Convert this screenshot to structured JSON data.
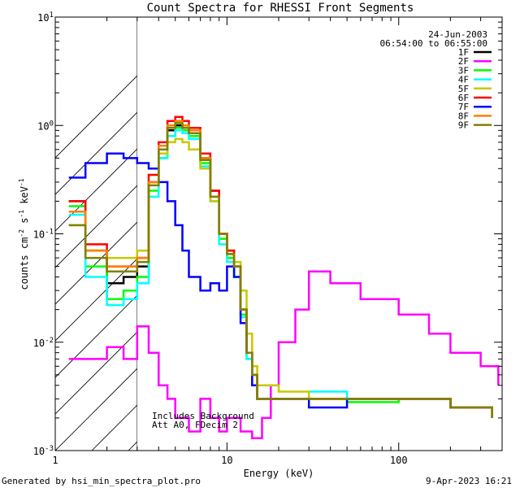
{
  "chart_data": {
    "type": "line",
    "title": "Count Spectra for RHESSI Front Segments",
    "xlabel": "Energy (keV)",
    "ylabel": {
      "base": "counts cm",
      "exp1": "-2",
      "mid": " s",
      "exp2": "-1",
      "tail": " keV",
      "exp3": "-1"
    },
    "xscale": "log",
    "yscale": "log",
    "xlim": [
      1,
      400
    ],
    "ylim": [
      0.001,
      10
    ],
    "x_tick_labels": [
      "1",
      "10",
      "100"
    ],
    "y_tick_labels": [
      {
        "base": "10",
        "exp": "-3"
      },
      {
        "base": "10",
        "exp": "-2"
      },
      {
        "base": "10",
        "exp": "-1"
      },
      {
        "base": "10",
        "exp": "0"
      },
      {
        "base": "10",
        "exp": "1"
      }
    ],
    "excluded_region_below_keV": 3,
    "date": "24-Jun-2003",
    "time_range": "06:54:00 to 06:55:00",
    "annotations": [
      "Includes Background",
      "Att A0, FDecim 2"
    ],
    "footer_left": "Generated by hsi_min_spectra_plot.pro",
    "footer_right": "9-Apr-2023 16:21",
    "series": [
      {
        "name": "1F",
        "color": "#000000",
        "x": [
          1.2,
          1.5,
          2.0,
          2.5,
          3.0,
          3.5,
          4.0,
          4.5,
          5.0,
          5.5,
          6.0,
          7.0,
          8.0,
          9.0,
          10.0,
          11.0,
          12.0,
          13.0,
          14.0,
          15.0,
          20.0,
          30.0,
          50.0,
          100.0,
          200.0,
          350.0
        ],
        "y": [
          0.2,
          0.07,
          0.035,
          0.04,
          0.05,
          0.3,
          0.6,
          0.9,
          1.0,
          0.95,
          0.85,
          0.5,
          0.25,
          0.1,
          0.07,
          0.05,
          0.02,
          0.008,
          0.005,
          0.003,
          0.003,
          0.003,
          0.003,
          0.003,
          0.0025,
          0.002
        ]
      },
      {
        "name": "2F",
        "color": "#ff00ff",
        "x": [
          1.2,
          1.5,
          2.0,
          2.5,
          3.0,
          3.5,
          4.0,
          4.5,
          5.0,
          6.0,
          7.0,
          8.0,
          9.0,
          10.0,
          12.0,
          14.0,
          16.0,
          18.0,
          20.0,
          25.0,
          30.0,
          40.0,
          60.0,
          100.0,
          150.0,
          200.0,
          300.0,
          380.0
        ],
        "y": [
          0.007,
          0.007,
          0.009,
          0.007,
          0.014,
          0.008,
          0.004,
          0.003,
          0.002,
          0.0015,
          0.003,
          0.002,
          0.0015,
          0.002,
          0.0015,
          0.0013,
          0.002,
          0.004,
          0.01,
          0.02,
          0.045,
          0.035,
          0.025,
          0.018,
          0.012,
          0.008,
          0.006,
          0.004
        ]
      },
      {
        "name": "3F",
        "color": "#00ff00",
        "x": [
          1.2,
          1.5,
          2.0,
          2.5,
          3.0,
          3.5,
          4.0,
          4.5,
          5.0,
          5.5,
          6.0,
          7.0,
          8.0,
          9.0,
          10.0,
          11.0,
          12.0,
          13.0,
          14.0,
          15.0,
          20.0,
          30.0,
          50.0,
          100.0,
          200.0,
          350.0
        ],
        "y": [
          0.18,
          0.05,
          0.025,
          0.03,
          0.04,
          0.25,
          0.5,
          0.8,
          0.95,
          0.9,
          0.8,
          0.45,
          0.2,
          0.09,
          0.06,
          0.04,
          0.018,
          0.007,
          0.004,
          0.003,
          0.003,
          0.003,
          0.0028,
          0.003,
          0.0025,
          0.002
        ]
      },
      {
        "name": "4F",
        "color": "#00ffff",
        "x": [
          1.2,
          1.5,
          2.0,
          2.5,
          3.0,
          3.5,
          4.0,
          4.5,
          5.0,
          5.5,
          6.0,
          7.0,
          8.0,
          9.0,
          10.0,
          11.0,
          12.0,
          13.0,
          14.0,
          15.0,
          20.0,
          30.0,
          50.0,
          100.0,
          200.0,
          350.0
        ],
        "y": [
          0.15,
          0.04,
          0.022,
          0.025,
          0.035,
          0.22,
          0.5,
          0.8,
          0.9,
          0.85,
          0.75,
          0.42,
          0.2,
          0.08,
          0.055,
          0.04,
          0.017,
          0.007,
          0.004,
          0.003,
          0.003,
          0.0035,
          0.003,
          0.003,
          0.0025,
          0.002
        ]
      },
      {
        "name": "5F",
        "color": "#c8c800",
        "x": [
          1.2,
          1.5,
          2.0,
          2.5,
          3.0,
          3.5,
          4.0,
          4.5,
          5.0,
          5.5,
          6.0,
          7.0,
          8.0,
          9.0,
          10.0,
          11.0,
          12.0,
          13.0,
          14.0,
          15.0,
          20.0,
          30.0,
          50.0,
          100.0,
          200.0,
          350.0
        ],
        "y": [
          0.12,
          0.07,
          0.06,
          0.06,
          0.07,
          0.3,
          0.55,
          0.7,
          0.75,
          0.7,
          0.6,
          0.4,
          0.2,
          0.1,
          0.07,
          0.055,
          0.03,
          0.012,
          0.006,
          0.004,
          0.0035,
          0.003,
          0.003,
          0.003,
          0.0025,
          0.002
        ]
      },
      {
        "name": "6F",
        "color": "#ff0000",
        "x": [
          1.2,
          1.5,
          2.0,
          2.5,
          3.0,
          3.5,
          4.0,
          4.5,
          5.0,
          5.5,
          6.0,
          7.0,
          8.0,
          9.0,
          10.0,
          11.0,
          12.0,
          13.0,
          14.0,
          15.0,
          20.0,
          30.0,
          50.0,
          100.0,
          200.0,
          350.0
        ],
        "y": [
          0.2,
          0.08,
          0.05,
          0.05,
          0.06,
          0.35,
          0.7,
          1.1,
          1.2,
          1.1,
          0.95,
          0.55,
          0.25,
          0.1,
          0.07,
          0.05,
          0.02,
          0.008,
          0.005,
          0.003,
          0.003,
          0.003,
          0.003,
          0.003,
          0.0025,
          0.002
        ]
      },
      {
        "name": "7F",
        "color": "#0000ff",
        "x": [
          1.2,
          1.5,
          2.0,
          2.5,
          3.0,
          3.5,
          4.0,
          4.5,
          5.0,
          5.5,
          6.0,
          7.0,
          8.0,
          9.0,
          10.0,
          11.0,
          12.0,
          13.0,
          14.0,
          15.0,
          20.0,
          30.0,
          50.0,
          100.0,
          200.0,
          350.0
        ],
        "y": [
          0.33,
          0.45,
          0.55,
          0.5,
          0.45,
          0.4,
          0.3,
          0.2,
          0.12,
          0.07,
          0.04,
          0.03,
          0.035,
          0.03,
          0.05,
          0.04,
          0.015,
          0.008,
          0.004,
          0.003,
          0.003,
          0.0025,
          0.003,
          0.003,
          0.0025,
          0.002
        ]
      },
      {
        "name": "8F",
        "color": "#ff8000",
        "x": [
          1.2,
          1.5,
          2.0,
          2.5,
          3.0,
          3.5,
          4.0,
          4.5,
          5.0,
          5.5,
          6.0,
          7.0,
          8.0,
          9.0,
          10.0,
          11.0,
          12.0,
          13.0,
          14.0,
          15.0,
          20.0,
          30.0,
          50.0,
          100.0,
          200.0,
          350.0
        ],
        "y": [
          0.16,
          0.07,
          0.05,
          0.05,
          0.06,
          0.3,
          0.65,
          1.0,
          1.1,
          1.0,
          0.9,
          0.5,
          0.22,
          0.1,
          0.065,
          0.05,
          0.02,
          0.008,
          0.005,
          0.003,
          0.003,
          0.003,
          0.003,
          0.003,
          0.0025,
          0.002
        ]
      },
      {
        "name": "9F",
        "color": "#808000",
        "x": [
          1.2,
          1.5,
          2.0,
          2.5,
          3.0,
          3.5,
          4.0,
          4.5,
          5.0,
          5.5,
          6.0,
          7.0,
          8.0,
          9.0,
          10.0,
          11.0,
          12.0,
          13.0,
          14.0,
          15.0,
          20.0,
          30.0,
          50.0,
          100.0,
          200.0,
          350.0
        ],
        "y": [
          0.12,
          0.06,
          0.045,
          0.045,
          0.055,
          0.28,
          0.6,
          0.95,
          1.05,
          0.95,
          0.85,
          0.48,
          0.22,
          0.1,
          0.065,
          0.05,
          0.02,
          0.008,
          0.005,
          0.003,
          0.003,
          0.003,
          0.003,
          0.003,
          0.0025,
          0.002
        ]
      }
    ]
  }
}
